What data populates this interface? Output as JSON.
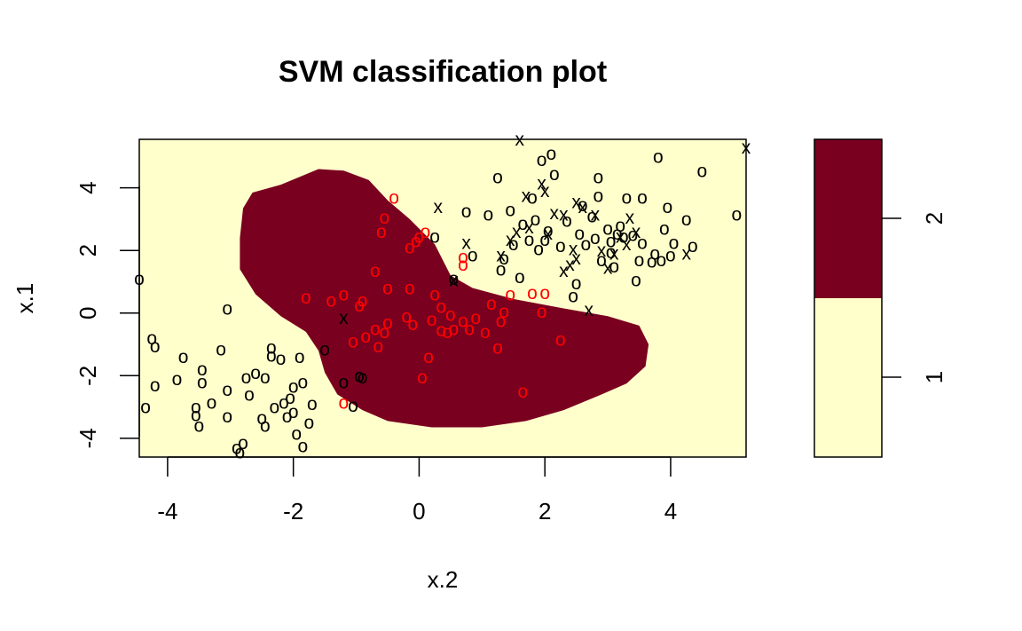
{
  "chart_data": {
    "type": "scatter",
    "title": "SVM classification plot",
    "xlabel": "x.2",
    "ylabel": "x.1",
    "xlim": [
      -4.45,
      5.2
    ],
    "ylim": [
      -4.6,
      5.55
    ],
    "x_ticks": [
      "-4",
      "-2",
      "0",
      "2",
      "4"
    ],
    "x_tick_values": [
      -4,
      -2,
      0,
      2,
      4
    ],
    "y_ticks": [
      "-4",
      "-2",
      "0",
      "2",
      "4"
    ],
    "y_tick_values": [
      -4,
      -2,
      0,
      2,
      4
    ],
    "colors": {
      "class1_region": "#FFFFCC",
      "class2_region": "#7A0020",
      "class1_points": "#000000",
      "class2_points": "#FF0000"
    },
    "legend": {
      "position": "right",
      "levels": [
        "1",
        "2"
      ],
      "colors": [
        "#FFFFCC",
        "#7A0020"
      ]
    },
    "decision_region_class2": [
      [
        -2.8,
        3.35
      ],
      [
        -2.65,
        3.85
      ],
      [
        -2.2,
        4.1
      ],
      [
        -1.6,
        4.6
      ],
      [
        -1.2,
        4.55
      ],
      [
        -0.8,
        4.25
      ],
      [
        -0.5,
        3.6
      ],
      [
        -0.15,
        3.0
      ],
      [
        0.25,
        2.2
      ],
      [
        0.5,
        1.2
      ],
      [
        0.85,
        0.8
      ],
      [
        1.5,
        0.45
      ],
      [
        2.3,
        0.15
      ],
      [
        3.0,
        -0.1
      ],
      [
        3.5,
        -0.4
      ],
      [
        3.65,
        -1.0
      ],
      [
        3.6,
        -1.7
      ],
      [
        3.3,
        -2.25
      ],
      [
        2.9,
        -2.6
      ],
      [
        2.3,
        -3.1
      ],
      [
        1.7,
        -3.45
      ],
      [
        1.0,
        -3.65
      ],
      [
        0.2,
        -3.65
      ],
      [
        -0.5,
        -3.45
      ],
      [
        -0.9,
        -3.1
      ],
      [
        -1.3,
        -2.6
      ],
      [
        -1.5,
        -1.9
      ],
      [
        -1.6,
        -1.2
      ],
      [
        -1.8,
        -0.6
      ],
      [
        -2.2,
        -0.1
      ],
      [
        -2.6,
        0.6
      ],
      [
        -2.85,
        1.4
      ],
      [
        -2.85,
        2.4
      ]
    ],
    "series": [
      {
        "name": "1",
        "marker": "o",
        "points": [
          [
            -4.45,
            1.1
          ],
          [
            -4.35,
            -3.0
          ],
          [
            -4.25,
            -0.8
          ],
          [
            -4.2,
            -1.05
          ],
          [
            -4.2,
            -2.3
          ],
          [
            -3.85,
            -2.1
          ],
          [
            -3.75,
            -1.4
          ],
          [
            -3.55,
            -3.25
          ],
          [
            -3.55,
            -3.0
          ],
          [
            -3.5,
            -3.6
          ],
          [
            -3.45,
            -2.2
          ],
          [
            -3.45,
            -1.8
          ],
          [
            -3.3,
            -2.85
          ],
          [
            -3.15,
            -1.15
          ],
          [
            -3.05,
            0.15
          ],
          [
            -3.05,
            -2.45
          ],
          [
            -3.05,
            -3.3
          ],
          [
            -2.9,
            -4.3
          ],
          [
            -2.85,
            -4.45
          ],
          [
            -2.8,
            -4.15
          ],
          [
            -2.75,
            -2.05
          ],
          [
            -2.7,
            -2.6
          ],
          [
            -2.6,
            -1.9
          ],
          [
            -2.5,
            -3.35
          ],
          [
            -2.45,
            -3.6
          ],
          [
            -2.45,
            -2.05
          ],
          [
            -2.35,
            -1.1
          ],
          [
            -2.35,
            -1.35
          ],
          [
            -2.3,
            -3.0
          ],
          [
            -2.2,
            -1.45
          ],
          [
            -2.15,
            -2.85
          ],
          [
            -2.1,
            -3.3
          ],
          [
            -2.05,
            -2.7
          ],
          [
            -2.0,
            -2.35
          ],
          [
            -2.0,
            -3.15
          ],
          [
            -1.95,
            -3.85
          ],
          [
            -1.9,
            -1.4
          ],
          [
            -1.85,
            -4.25
          ],
          [
            -1.85,
            -2.2
          ],
          [
            -1.75,
            -3.5
          ],
          [
            -1.7,
            -2.9
          ],
          [
            -1.5,
            -1.15
          ],
          [
            -1.2,
            -2.2
          ],
          [
            -1.05,
            -2.95
          ],
          [
            -0.95,
            -2.0
          ],
          [
            -0.9,
            -2.05
          ],
          [
            0.25,
            2.45
          ],
          [
            0.75,
            3.25
          ],
          [
            0.85,
            1.85
          ],
          [
            1.1,
            3.15
          ],
          [
            1.25,
            4.35
          ],
          [
            1.3,
            1.4
          ],
          [
            1.35,
            1.75
          ],
          [
            1.45,
            3.3
          ],
          [
            1.5,
            2.2
          ],
          [
            1.6,
            1.15
          ],
          [
            1.65,
            2.85
          ],
          [
            1.75,
            2.35
          ],
          [
            1.8,
            3.7
          ],
          [
            1.85,
            3.0
          ],
          [
            1.9,
            2.05
          ],
          [
            1.95,
            4.9
          ],
          [
            2.0,
            2.35
          ],
          [
            2.05,
            2.65
          ],
          [
            2.1,
            5.1
          ],
          [
            2.15,
            4.45
          ],
          [
            2.25,
            2.15
          ],
          [
            2.35,
            2.95
          ],
          [
            2.45,
            0.55
          ],
          [
            2.5,
            0.95
          ],
          [
            2.55,
            2.55
          ],
          [
            2.6,
            3.45
          ],
          [
            2.65,
            2.2
          ],
          [
            2.75,
            3.1
          ],
          [
            2.8,
            2.4
          ],
          [
            2.85,
            3.75
          ],
          [
            2.85,
            4.35
          ],
          [
            2.9,
            1.7
          ],
          [
            3.0,
            2.7
          ],
          [
            3.05,
            2.3
          ],
          [
            3.05,
            1.95
          ],
          [
            3.1,
            1.5
          ],
          [
            3.15,
            2.55
          ],
          [
            3.2,
            2.8
          ],
          [
            3.25,
            2.45
          ],
          [
            3.3,
            3.7
          ],
          [
            3.4,
            2.5
          ],
          [
            3.45,
            1.05
          ],
          [
            3.5,
            1.7
          ],
          [
            3.55,
            2.25
          ],
          [
            3.55,
            3.7
          ],
          [
            3.7,
            1.65
          ],
          [
            3.75,
            1.9
          ],
          [
            3.8,
            5.0
          ],
          [
            3.85,
            1.7
          ],
          [
            3.9,
            2.7
          ],
          [
            3.95,
            3.4
          ],
          [
            4.0,
            1.85
          ],
          [
            4.05,
            2.25
          ],
          [
            4.25,
            3.0
          ],
          [
            4.35,
            2.15
          ],
          [
            4.5,
            4.55
          ],
          [
            5.05,
            3.15
          ],
          [
            0.55,
            1.1
          ]
        ]
      },
      {
        "name": "2",
        "marker": "o",
        "points": [
          [
            -1.8,
            0.5
          ],
          [
            -1.4,
            0.4
          ],
          [
            -1.2,
            0.6
          ],
          [
            -1.2,
            -2.85
          ],
          [
            -1.05,
            -0.9
          ],
          [
            -0.95,
            0.25
          ],
          [
            -0.9,
            0.4
          ],
          [
            -0.85,
            -0.75
          ],
          [
            -0.7,
            -0.5
          ],
          [
            -0.7,
            1.35
          ],
          [
            -0.65,
            -1.05
          ],
          [
            -0.6,
            2.6
          ],
          [
            -0.55,
            3.05
          ],
          [
            -0.55,
            -0.6
          ],
          [
            -0.5,
            -0.3
          ],
          [
            -0.5,
            0.8
          ],
          [
            -0.4,
            3.7
          ],
          [
            -0.2,
            -0.1
          ],
          [
            -0.15,
            0.8
          ],
          [
            -0.15,
            2.1
          ],
          [
            -0.1,
            -0.35
          ],
          [
            -0.05,
            2.3
          ],
          [
            0.0,
            2.45
          ],
          [
            0.05,
            -2.05
          ],
          [
            0.1,
            2.6
          ],
          [
            0.15,
            -1.4
          ],
          [
            0.2,
            -0.2
          ],
          [
            0.25,
            0.6
          ],
          [
            0.35,
            -0.55
          ],
          [
            0.35,
            0.2
          ],
          [
            0.45,
            -0.6
          ],
          [
            0.5,
            -0.05
          ],
          [
            0.55,
            -0.5
          ],
          [
            0.7,
            -0.25
          ],
          [
            0.7,
            1.55
          ],
          [
            0.7,
            1.8
          ],
          [
            0.8,
            -0.5
          ],
          [
            0.9,
            -0.15
          ],
          [
            1.05,
            -0.6
          ],
          [
            1.15,
            0.3
          ],
          [
            1.25,
            -1.1
          ],
          [
            1.3,
            -0.25
          ],
          [
            1.35,
            0.05
          ],
          [
            1.45,
            0.6
          ],
          [
            1.65,
            -2.5
          ],
          [
            1.8,
            0.65
          ],
          [
            1.95,
            0.05
          ],
          [
            2.0,
            0.65
          ],
          [
            2.25,
            -0.85
          ]
        ]
      },
      {
        "name": "1",
        "marker": "x",
        "points": [
          [
            0.3,
            3.4
          ],
          [
            0.75,
            2.25
          ],
          [
            1.3,
            1.85
          ],
          [
            1.45,
            2.35
          ],
          [
            1.55,
            2.6
          ],
          [
            1.6,
            5.55
          ],
          [
            1.7,
            3.75
          ],
          [
            1.75,
            2.75
          ],
          [
            1.95,
            4.15
          ],
          [
            2.0,
            3.9
          ],
          [
            2.05,
            2.55
          ],
          [
            2.15,
            3.2
          ],
          [
            2.3,
            3.15
          ],
          [
            2.3,
            1.35
          ],
          [
            2.4,
            1.55
          ],
          [
            2.45,
            2.05
          ],
          [
            2.5,
            1.75
          ],
          [
            2.5,
            3.55
          ],
          [
            2.6,
            3.4
          ],
          [
            2.7,
            0.1
          ],
          [
            2.8,
            3.15
          ],
          [
            2.9,
            2.0
          ],
          [
            3.0,
            1.45
          ],
          [
            3.1,
            1.9
          ],
          [
            3.2,
            2.45
          ],
          [
            3.3,
            2.2
          ],
          [
            3.35,
            3.05
          ],
          [
            3.45,
            2.6
          ],
          [
            4.25,
            1.9
          ],
          [
            5.2,
            5.3
          ],
          [
            0.55,
            1.05
          ],
          [
            -1.2,
            -0.15
          ]
        ]
      }
    ]
  }
}
